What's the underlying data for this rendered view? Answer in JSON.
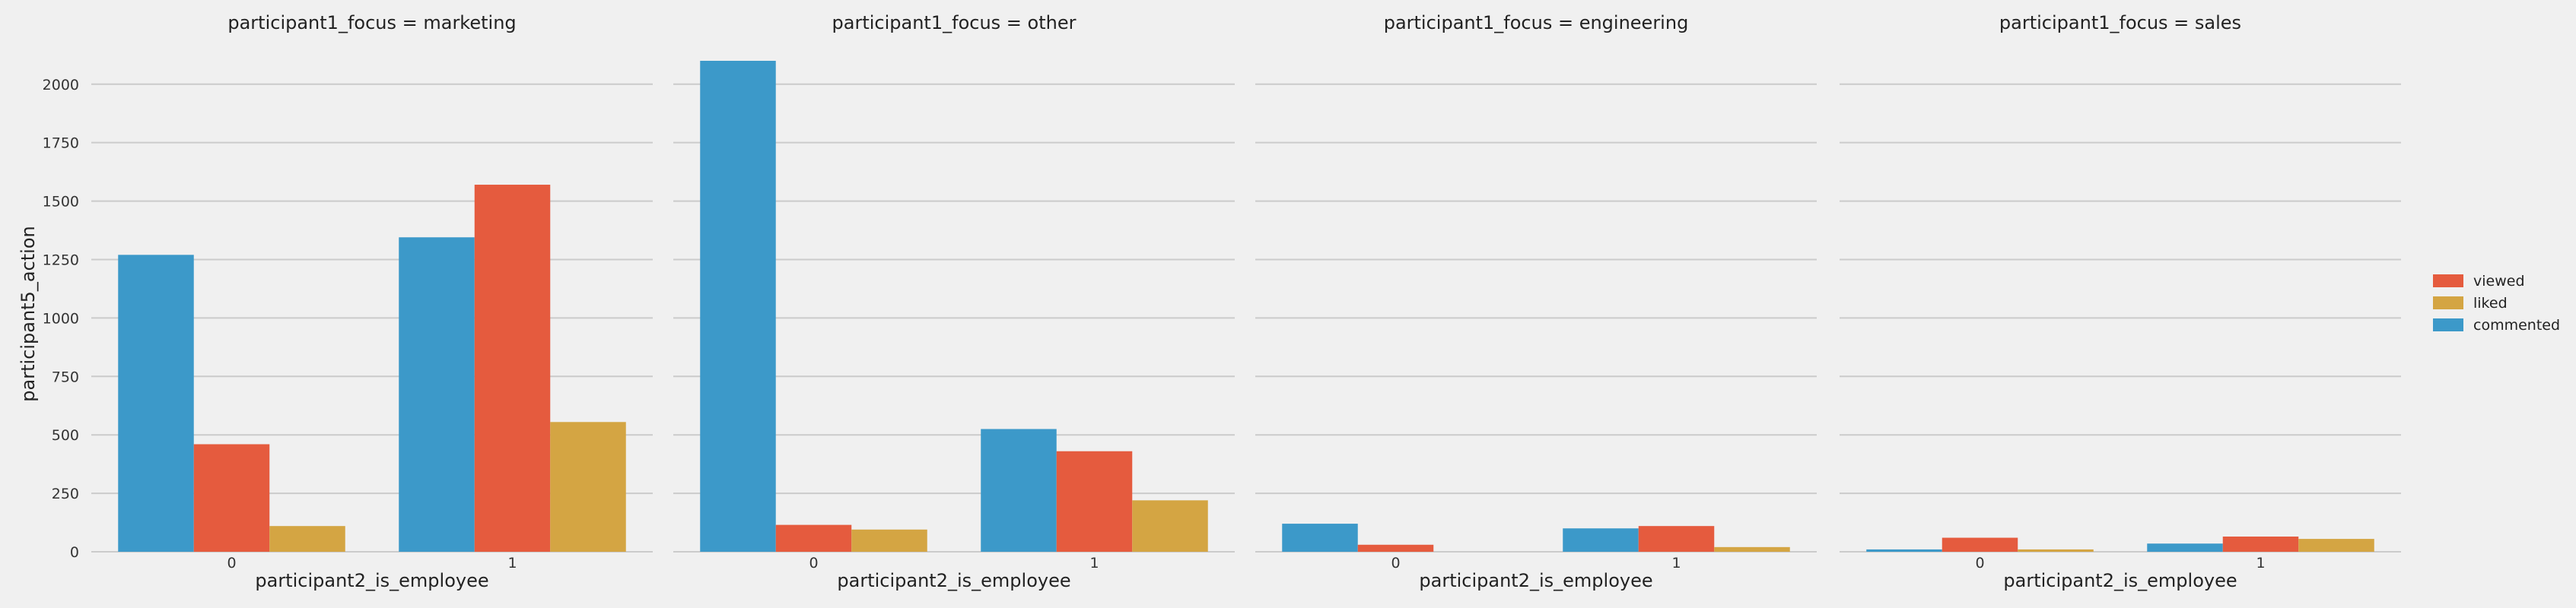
{
  "chart_data": {
    "type": "bar",
    "ylabel": "participant5_action",
    "xlabel": "participant2_is_employee",
    "categories": [
      "0",
      "1"
    ],
    "ylim": [
      0,
      2100
    ],
    "yticks": [
      0,
      250,
      500,
      750,
      1000,
      1250,
      1500,
      1750,
      2000
    ],
    "grid": true,
    "legend": {
      "position": "right",
      "entries": [
        "viewed",
        "liked",
        "commented"
      ]
    },
    "series_colors": {
      "commented": "#3c99c9",
      "viewed": "#e55b3e",
      "liked": "#d4a543"
    },
    "facets": [
      {
        "title": "participant1_focus = marketing",
        "series": [
          {
            "name": "commented",
            "values": [
              1270,
              1345
            ]
          },
          {
            "name": "viewed",
            "values": [
              460,
              1570
            ]
          },
          {
            "name": "liked",
            "values": [
              110,
              555
            ]
          }
        ]
      },
      {
        "title": "participant1_focus = other",
        "series": [
          {
            "name": "commented",
            "values": [
              2100,
              525
            ]
          },
          {
            "name": "viewed",
            "values": [
              115,
              430
            ]
          },
          {
            "name": "liked",
            "values": [
              95,
              220
            ]
          }
        ]
      },
      {
        "title": "participant1_focus = engineering",
        "series": [
          {
            "name": "commented",
            "values": [
              120,
              100
            ]
          },
          {
            "name": "viewed",
            "values": [
              30,
              110
            ]
          },
          {
            "name": "liked",
            "values": [
              0,
              20
            ]
          }
        ]
      },
      {
        "title": "participant1_focus = sales",
        "series": [
          {
            "name": "commented",
            "values": [
              10,
              35
            ]
          },
          {
            "name": "viewed",
            "values": [
              60,
              65
            ]
          },
          {
            "name": "liked",
            "values": [
              10,
              55
            ]
          }
        ]
      }
    ]
  }
}
